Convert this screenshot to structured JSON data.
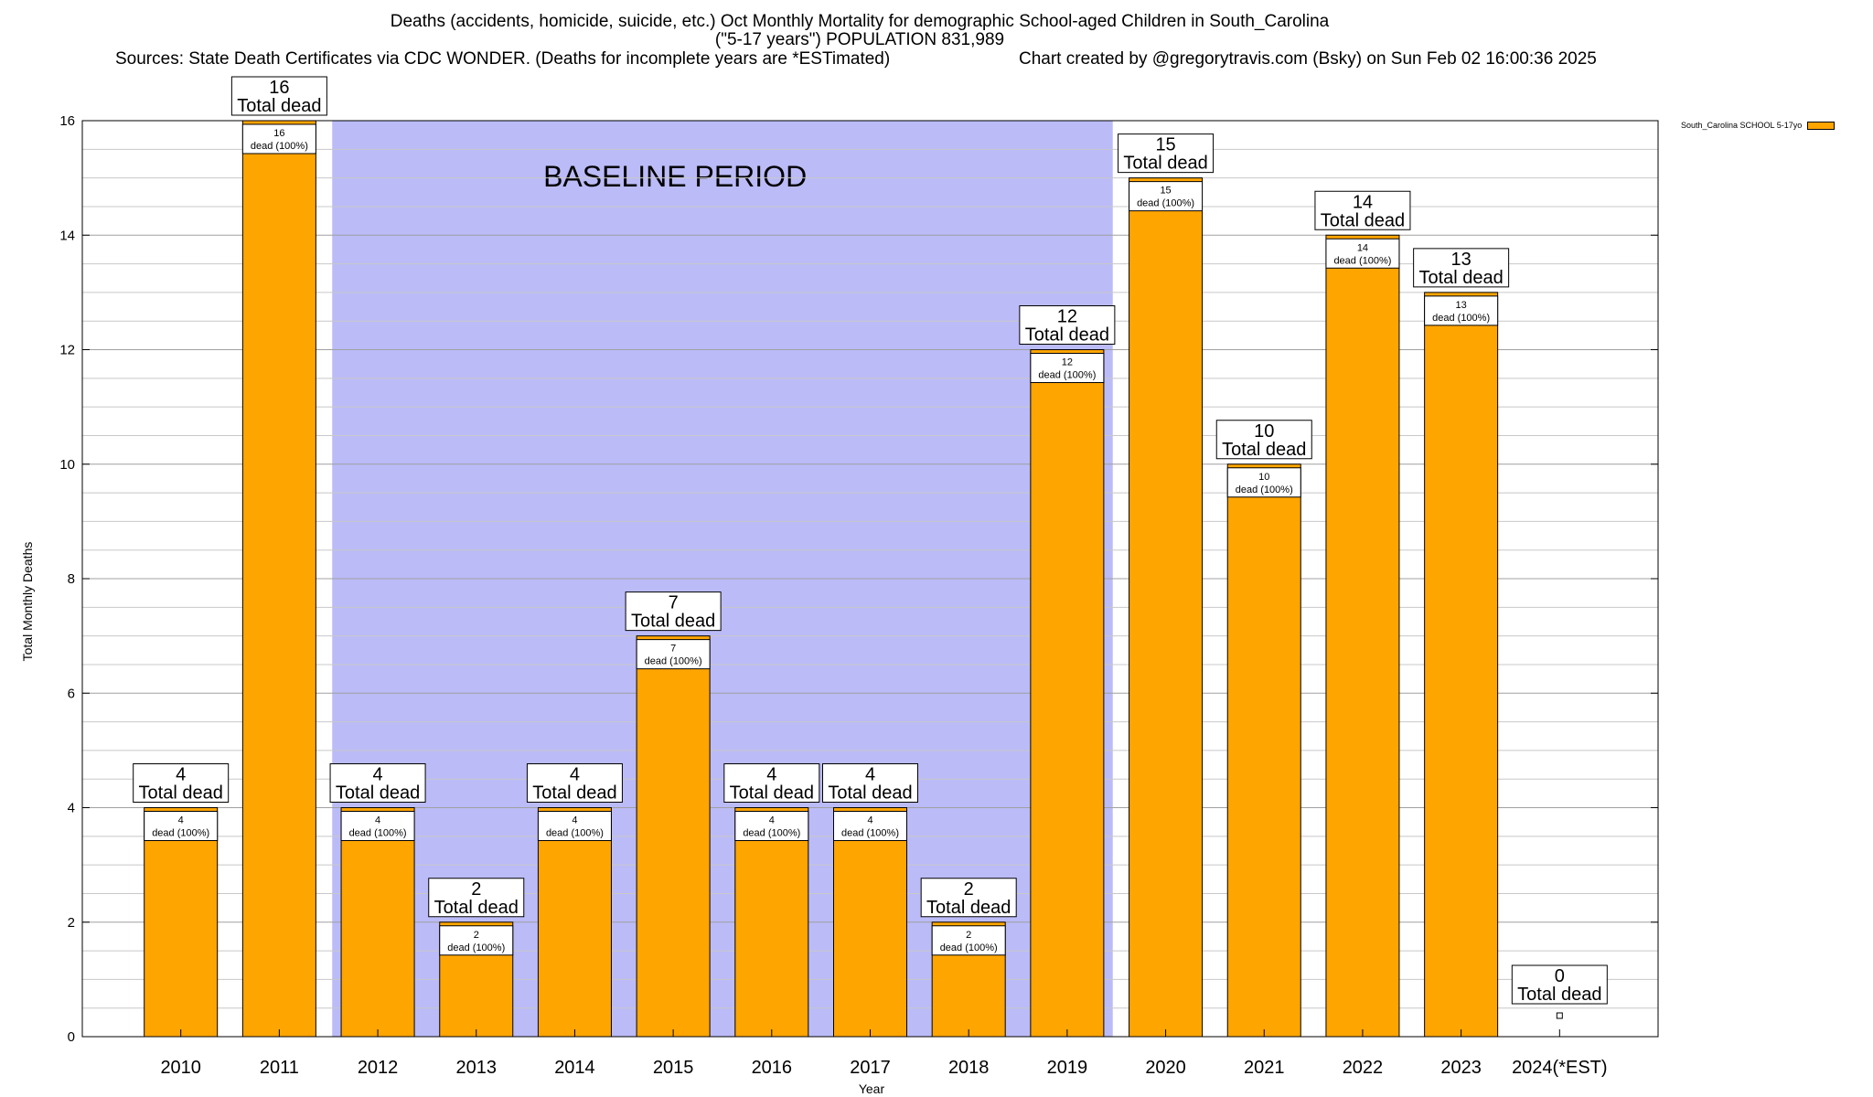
{
  "chart_data": {
    "type": "bar",
    "title_line1": "Deaths (accidents, homicide, suicide, etc.) Oct Monthly Mortality for demographic School-aged Children in South_Carolina",
    "title_line2": "(\"5-17 years\") POPULATION 831,989",
    "sources": "Sources: State Death Certificates via CDC WONDER. (Deaths for incomplete years are *ESTimated)",
    "credit": "Chart created by @gregorytravis.com (Bsky) on Sun Feb 02 16:00:36 2025",
    "xlabel": "Year",
    "ylabel": "Total Monthly Deaths",
    "categories": [
      "2010",
      "2011",
      "2012",
      "2013",
      "2014",
      "2015",
      "2016",
      "2017",
      "2018",
      "2019",
      "2020",
      "2021",
      "2022",
      "2023",
      "2024(*EST)"
    ],
    "series": [
      {
        "name": "South_Carolina SCHOOL 5-17yo",
        "color": "#ffa500",
        "values": [
          4,
          16,
          4,
          2,
          4,
          7,
          4,
          4,
          2,
          12,
          15,
          10,
          14,
          13,
          0
        ]
      }
    ],
    "total_label_word": "Total dead",
    "inner_label_suffix": "dead (100%)",
    "ylim": [
      0,
      16
    ],
    "yticks": [
      0,
      2,
      4,
      6,
      8,
      10,
      12,
      14,
      16
    ],
    "grid": true,
    "legend_position": "top-right",
    "baseline_period": {
      "label": "BASELINE PERIOD",
      "from": "2012",
      "to": "2019",
      "color": "#bbbbf8"
    }
  }
}
